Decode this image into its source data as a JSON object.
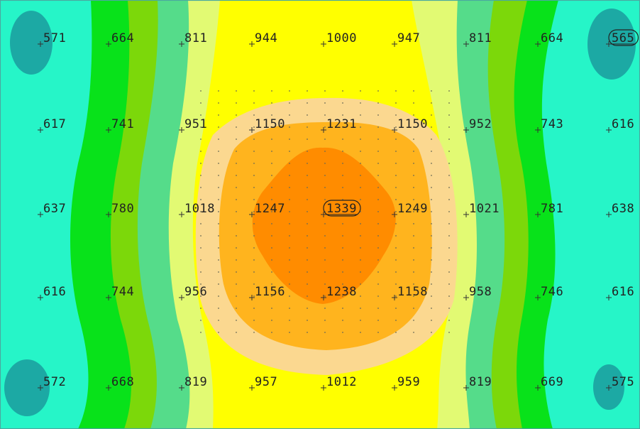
{
  "isolux_plot": {
    "grid_rows": [
      [
        "571",
        "664",
        "811",
        "944",
        "1000",
        "947",
        "811",
        "664",
        "565"
      ],
      [
        "617",
        "741",
        "951",
        "1150",
        "1231",
        "1150",
        "952",
        "743",
        "616"
      ],
      [
        "637",
        "780",
        "1018",
        "1247",
        "1339",
        "1249",
        "1021",
        "781",
        "638"
      ],
      [
        "616",
        "744",
        "956",
        "1156",
        "1238",
        "1158",
        "958",
        "746",
        "616"
      ],
      [
        "572",
        "668",
        "819",
        "957",
        "1012",
        "959",
        "819",
        "669",
        "575"
      ]
    ],
    "highlighted": [
      {
        "row": 0,
        "col": 8,
        "note": "min"
      },
      {
        "row": 2,
        "col": 4,
        "note": "max"
      }
    ],
    "colors": {
      "band_lt_600": "#1ca9a4",
      "band_600_700": "#26f5c8",
      "band_700_800": "#08e21a",
      "band_800_900": "#7cd80a",
      "band_900_950": "#55dc8a",
      "band_950_1000": "#e2fa73",
      "band_1000_1100": "#ffff00",
      "band_1100_1200": "#fbd890",
      "band_1200_1300": "#ffb41e",
      "band_gt_1300": "#ff8c00"
    }
  }
}
